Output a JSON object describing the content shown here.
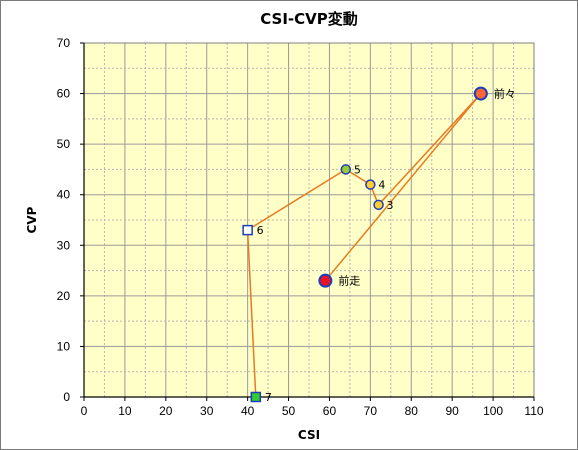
{
  "chart_data": {
    "type": "scatter",
    "title": "CSI-CVP変動",
    "xlabel": "CSI",
    "ylabel": "CVP",
    "xlim": [
      0,
      110
    ],
    "ylim": [
      0,
      70
    ],
    "x_ticks": [
      "0",
      "10",
      "20",
      "30",
      "40",
      "50",
      "60",
      "70",
      "80",
      "90",
      "100",
      "110"
    ],
    "y_ticks": [
      "0",
      "10",
      "20",
      "30",
      "40",
      "50",
      "60",
      "70"
    ],
    "x_minor_step": 5,
    "y_minor_step": 5,
    "grid": true,
    "background_color": "#ffffc8",
    "line_color": "#e87a22",
    "points": [
      {
        "label": "7",
        "x": 42,
        "y": 0,
        "marker": "square",
        "fill": "#33cc33",
        "stroke": "#1a3fb8"
      },
      {
        "label": "6",
        "x": 40,
        "y": 33,
        "marker": "square",
        "fill": "#ffffff",
        "stroke": "#1a3fb8"
      },
      {
        "label": "5",
        "x": 64,
        "y": 45,
        "marker": "circle",
        "fill": "#99cc33",
        "stroke": "#1a3fb8"
      },
      {
        "label": "4",
        "x": 70,
        "y": 42,
        "marker": "circle",
        "fill": "#ffcc33",
        "stroke": "#1a3fb8"
      },
      {
        "label": "3",
        "x": 72,
        "y": 38,
        "marker": "circle",
        "fill": "#ffcc33",
        "stroke": "#1a3fb8"
      },
      {
        "label": "前々",
        "x": 97,
        "y": 60,
        "marker": "circle-large",
        "fill": "#ff6633",
        "stroke": "#1a3fb8"
      },
      {
        "label": "前走",
        "x": 59,
        "y": 23,
        "marker": "circle-large",
        "fill": "#ee1122",
        "stroke": "#1a3fb8"
      }
    ]
  }
}
